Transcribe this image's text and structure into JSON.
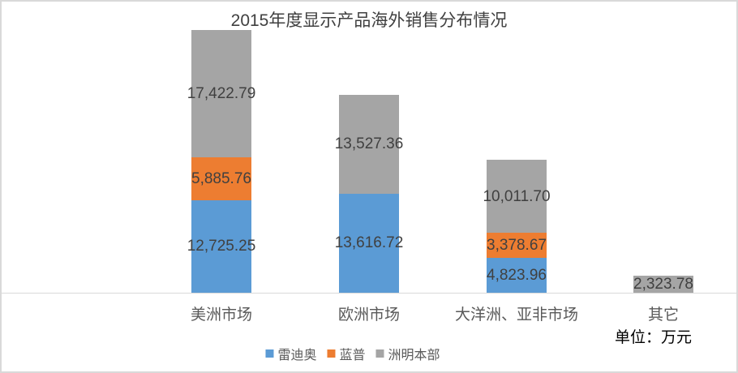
{
  "chart_data": {
    "type": "bar",
    "stacked": true,
    "title": "2015年度显示产品海外销售分布情况",
    "unit_note": "单位：万元",
    "categories": [
      "美洲市场",
      "欧洲市场",
      "大洋洲、亚非市场",
      "其它"
    ],
    "series": [
      {
        "name": "雷迪奥",
        "color": "#5B9BD5",
        "values": [
          12725.25,
          13616.72,
          4823.96,
          0
        ],
        "labels": [
          "12,725.25",
          "13,616.72",
          "4,823.96",
          ""
        ]
      },
      {
        "name": "蓝普",
        "color": "#ED7D31",
        "values": [
          5885.76,
          0,
          3378.67,
          0
        ],
        "labels": [
          "5,885.76",
          "",
          "3,378.67",
          ""
        ]
      },
      {
        "name": "洲明本部",
        "color": "#A5A5A5",
        "values": [
          17422.79,
          13527.36,
          10011.7,
          2323.78
        ],
        "labels": [
          "17,422.79",
          "13,527.36",
          "10,011.70",
          "2,323.78"
        ]
      }
    ],
    "category_totals": [
      36033.8,
      27144.08,
      18214.33,
      2323.78
    ],
    "ylim": [
      0,
      36033.8
    ],
    "grid": false,
    "legend_position": "bottom",
    "label_color": "#404040",
    "axis_line_color": "#D9D9D9",
    "text_color": "#595959"
  }
}
